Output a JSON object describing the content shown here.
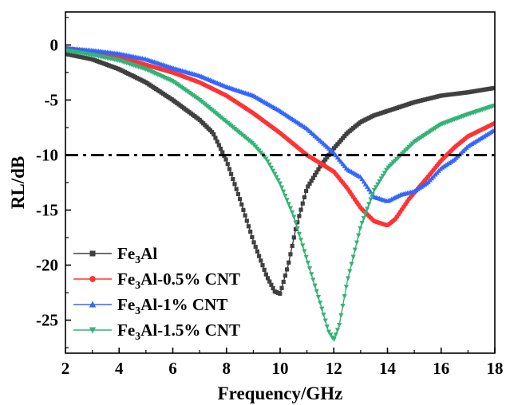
{
  "chart_data": {
    "type": "line",
    "xlabel": "Frequency/GHz",
    "ylabel": "RL/dB",
    "xlim": [
      2,
      18
    ],
    "ylim": [
      -28,
      3
    ],
    "xticks": [
      "2",
      "4",
      "6",
      "8",
      "10",
      "12",
      "14",
      "16",
      "18"
    ],
    "yticks": [
      "0",
      "-5",
      "-10",
      "-15",
      "-20",
      "-25"
    ],
    "reference_line": {
      "y": -10,
      "style": "dash-dot",
      "color": "#000000"
    },
    "legend_position": "bottom-left",
    "series": [
      {
        "name_base": "Fe",
        "name_sub": "3",
        "name_rest": "Al",
        "color": "#404040",
        "marker": "square",
        "x": [
          2,
          3,
          4,
          5,
          6,
          7,
          7.5,
          8,
          8.5,
          9,
          9.5,
          9.8,
          10,
          10.3,
          10.6,
          11,
          11.5,
          12,
          12.5,
          13,
          13.5,
          14,
          15,
          16,
          17,
          18
        ],
        "y": [
          -0.8,
          -1.3,
          -2.2,
          -3.4,
          -5.0,
          -6.8,
          -8.0,
          -10.5,
          -14.0,
          -17.8,
          -21.0,
          -22.4,
          -22.6,
          -20.0,
          -16.5,
          -13.0,
          -11.0,
          -9.4,
          -8.0,
          -7.0,
          -6.4,
          -6.0,
          -5.2,
          -4.6,
          -4.3,
          -3.9
        ]
      },
      {
        "name_base": "Fe",
        "name_sub": "3",
        "name_rest": "Al-0.5% CNT",
        "color": "#ff3333",
        "marker": "circle",
        "x": [
          2,
          3,
          4,
          5,
          6,
          7,
          8,
          9,
          10,
          11,
          12,
          12.5,
          13,
          13.5,
          14,
          14.3,
          14.8,
          15.5,
          16,
          16.5,
          17,
          18
        ],
        "y": [
          -0.3,
          -0.6,
          -1.1,
          -1.8,
          -2.5,
          -3.4,
          -4.6,
          -6.2,
          -8.0,
          -10.0,
          -11.5,
          -13.0,
          -14.8,
          -16.0,
          -16.4,
          -15.8,
          -14.0,
          -12.0,
          -10.5,
          -9.3,
          -8.3,
          -7.1
        ]
      },
      {
        "name_base": "Fe",
        "name_sub": "3",
        "name_rest": "Al-1%  CNT",
        "color": "#3366ff",
        "marker": "triangle-up",
        "x": [
          2,
          3,
          4,
          5,
          6,
          7,
          8,
          9,
          10,
          11,
          12,
          12.5,
          13,
          13.5,
          14,
          14.5,
          15,
          15.5,
          16,
          16.5,
          17,
          18
        ],
        "y": [
          -0.3,
          -0.5,
          -0.8,
          -1.3,
          -2.1,
          -2.8,
          -3.8,
          -4.6,
          -6.0,
          -7.6,
          -9.8,
          -11.3,
          -12.0,
          -13.8,
          -14.2,
          -13.6,
          -13.3,
          -12.5,
          -11.2,
          -10.4,
          -9.2,
          -7.7
        ]
      },
      {
        "name_base": "Fe",
        "name_sub": "3",
        "name_rest": "Al-1.5% CNT",
        "color": "#33b377",
        "marker": "triangle-down",
        "x": [
          2,
          3,
          4,
          5,
          6,
          7,
          8,
          9,
          9.5,
          10,
          10.5,
          11,
          11.5,
          11.8,
          12,
          12.2,
          12.5,
          13,
          13.5,
          14,
          15,
          16,
          17,
          18
        ],
        "y": [
          -0.5,
          -0.9,
          -1.4,
          -2.2,
          -3.3,
          -5.0,
          -7.0,
          -9.0,
          -10.4,
          -12.6,
          -15.5,
          -19.5,
          -23.5,
          -26.0,
          -26.8,
          -25.5,
          -21.5,
          -16.5,
          -13.2,
          -11.2,
          -8.8,
          -7.2,
          -6.3,
          -5.5
        ]
      }
    ]
  }
}
